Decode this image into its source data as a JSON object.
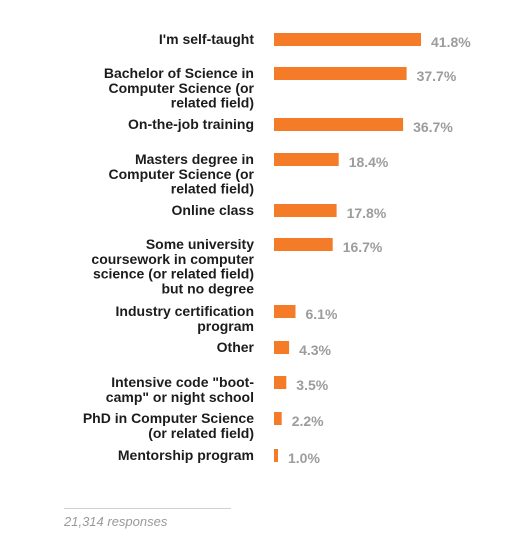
{
  "chart_data": {
    "type": "bar",
    "orientation": "horizontal",
    "categories": [
      [
        "I'm self-taught"
      ],
      [
        "Bachelor of Science in",
        "Computer Science (or",
        "related field)"
      ],
      [
        "On-the-job training"
      ],
      [
        "Masters degree in",
        "Computer Science (or",
        "related field)"
      ],
      [
        "Online class"
      ],
      [
        "Some university",
        "coursework in computer",
        "science (or related field)",
        "but no degree"
      ],
      [
        "Industry certification",
        "program"
      ],
      [
        "Other"
      ],
      [
        "Intensive code \"boot-",
        "camp\" or night school"
      ],
      [
        "PhD in Computer Science",
        "(or related field)"
      ],
      [
        "Mentorship program"
      ]
    ],
    "values": [
      41.8,
      37.7,
      36.7,
      18.4,
      17.8,
      16.7,
      6.1,
      4.3,
      3.5,
      2.2,
      1.0
    ],
    "value_labels": [
      "41.8%",
      "37.7%",
      "36.7%",
      "18.4%",
      "17.8%",
      "16.7%",
      "6.1%",
      "4.3%",
      "3.5%",
      "2.2%",
      "1.0%"
    ],
    "xlim": [
      0,
      41.8
    ],
    "grid": false,
    "legend": "none",
    "colors": {
      "bar": "#f47b28",
      "value_label": "#9c9c9c",
      "category_label": "#1c1c1c"
    }
  },
  "footer": {
    "note": "21,314 responses"
  }
}
